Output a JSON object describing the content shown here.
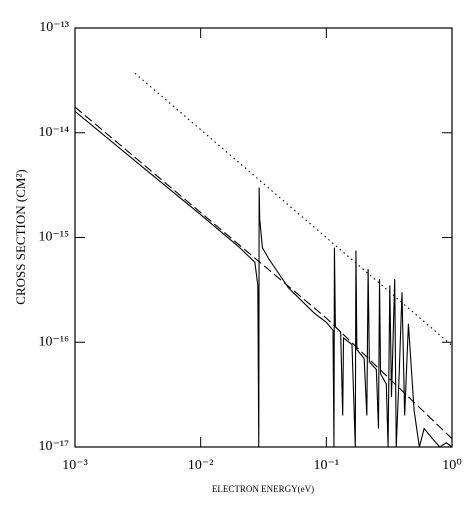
{
  "chart_data": {
    "type": "line",
    "x_label": "ELECTRON ENERGY(eV)",
    "y_label": "CROSS SECTION (CM²)",
    "log_x": true,
    "log_y": true,
    "xlim": [
      0.001,
      1
    ],
    "ylim": [
      1e-17,
      1e-13
    ],
    "xticks": [
      {
        "value": 0.001,
        "label": "10⁻³"
      },
      {
        "value": 0.01,
        "label": "10⁻²"
      },
      {
        "value": 0.1,
        "label": "10⁻¹"
      },
      {
        "value": 1,
        "label": "10⁰"
      }
    ],
    "yticks": [
      {
        "value": 1e-17,
        "label": "10⁻¹⁷"
      },
      {
        "value": 1e-16,
        "label": "10⁻¹⁶"
      },
      {
        "value": 1e-15,
        "label": "10⁻¹⁵"
      },
      {
        "value": 1e-14,
        "label": "10⁻¹⁴"
      },
      {
        "value": 1e-13,
        "label": "10⁻¹³"
      }
    ],
    "series": [
      {
        "color": "#000000",
        "dash": "solid",
        "x": [
          0.001,
          0.003,
          0.01,
          0.02,
          0.027,
          0.0285,
          0.029,
          0.0292,
          0.0295,
          0.031,
          0.035,
          0.05,
          0.08,
          0.1,
          0.113,
          0.115,
          0.116,
          0.118,
          0.13,
          0.135,
          0.137,
          0.16,
          0.17,
          0.172,
          0.175,
          0.2,
          0.21,
          0.215,
          0.22,
          0.25,
          0.26,
          0.265,
          0.27,
          0.3,
          0.31,
          0.32,
          0.33,
          0.35,
          0.36,
          0.38,
          0.4,
          0.42,
          0.45,
          0.5,
          0.55,
          0.6,
          0.7,
          0.8,
          0.9,
          1.0
        ],
        "values": [
          1.6e-14,
          5.4e-15,
          1.65e-15,
          8.2e-16,
          5.8e-16,
          3.5e-16,
          1e-17,
          3e-15,
          1.5e-15,
          8e-16,
          6.2e-16,
          3.3e-16,
          1.9e-16,
          1.55e-16,
          1.3e-16,
          1e-17,
          8e-16,
          1.4e-16,
          1.25e-16,
          2e-17,
          1.1e-16,
          9.5e-17,
          1e-17,
          7.5e-16,
          8.5e-17,
          7e-17,
          2e-17,
          5e-16,
          6.5e-17,
          5.5e-17,
          1.5e-17,
          4e-16,
          5e-17,
          4e-17,
          1e-17,
          3.5e-16,
          3e-17,
          4e-16,
          1e-17,
          5e-17,
          3e-16,
          2e-17,
          1.5e-16,
          2.2e-17,
          1e-17,
          1.5e-17,
          1.2e-17,
          1e-17,
          1.1e-17,
          1e-17
        ]
      },
      {
        "color": "#000000",
        "dash": "dashed",
        "x": [
          0.001,
          0.1,
          1.0
        ],
        "values": [
          1.76e-14,
          1.7e-16,
          1.2e-17
        ]
      },
      {
        "color": "#000000",
        "dash": "dotted",
        "x": [
          0.003,
          1.0
        ],
        "values": [
          3.7e-14,
          9.3e-17
        ]
      }
    ]
  }
}
